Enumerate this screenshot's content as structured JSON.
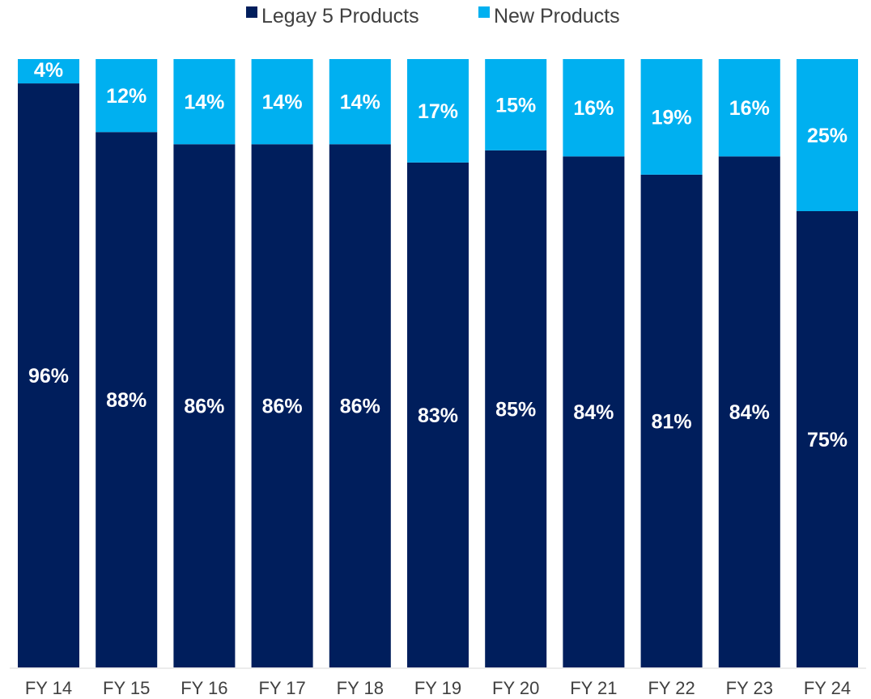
{
  "chart_data": {
    "type": "bar",
    "stacked": true,
    "categories": [
      "FY 14",
      "FY 15",
      "FY 16",
      "FY 17",
      "FY 18",
      "FY 19",
      "FY 20",
      "FY 21",
      "FY 22",
      "FY 23",
      "FY 24"
    ],
    "series": [
      {
        "name": "Legay 5 Products",
        "color": "#001e5c",
        "values": [
          96,
          88,
          86,
          86,
          86,
          83,
          85,
          84,
          81,
          84,
          75
        ],
        "labels": [
          "96%",
          "88%",
          "86%",
          "86%",
          "86%",
          "83%",
          "85%",
          "84%",
          "81%",
          "84%",
          "75%"
        ]
      },
      {
        "name": "New Products",
        "color": "#00b0f0",
        "values": [
          4,
          12,
          14,
          14,
          14,
          17,
          15,
          16,
          19,
          16,
          25
        ],
        "labels": [
          "4%",
          "12%",
          "14%",
          "14%",
          "14%",
          "17%",
          "15%",
          "16%",
          "19%",
          "16%",
          "25%"
        ]
      }
    ],
    "ylim": [
      0,
      100
    ],
    "legend_position": "top-center",
    "grid": false
  }
}
